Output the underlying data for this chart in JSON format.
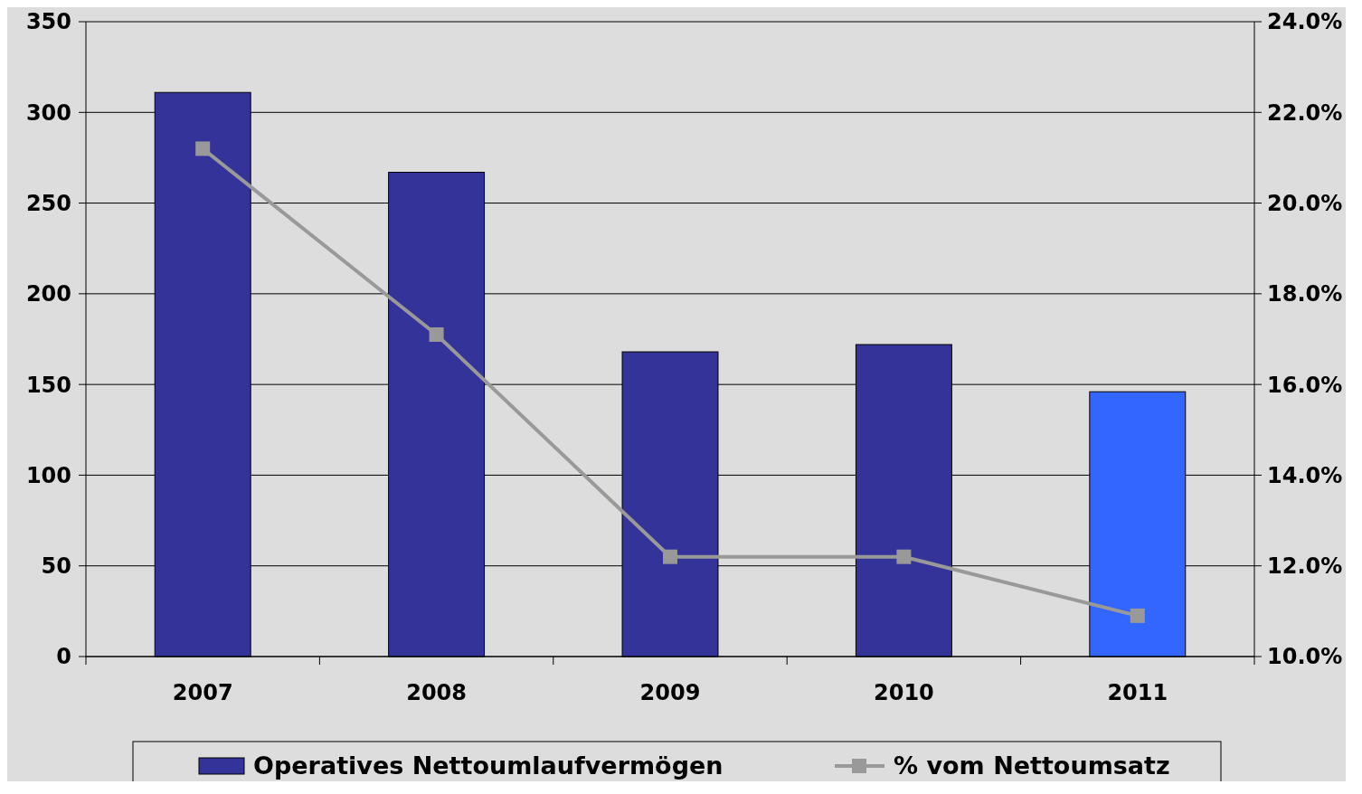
{
  "chart_data": {
    "type": "bar",
    "categories": [
      "2007",
      "2008",
      "2009",
      "2010",
      "2011"
    ],
    "series": [
      {
        "name": "Operatives Nettoumlaufvermögen",
        "color": "#333399",
        "colors": [
          "#333399",
          "#333399",
          "#333399",
          "#333399",
          "#3366ff"
        ],
        "values": [
          311,
          267,
          168,
          172,
          146
        ]
      },
      {
        "name": "% vom Nettoumsatz",
        "type": "line",
        "axis": "y2",
        "color": "#999999",
        "values": [
          21.2,
          17.1,
          12.2,
          12.2,
          10.9
        ]
      }
    ],
    "ylim": [
      0,
      350
    ],
    "yticks": [
      0,
      50,
      100,
      150,
      200,
      250,
      300,
      350
    ],
    "y2lim": [
      10,
      24
    ],
    "y2ticks": [
      {
        "value": 10,
        "label": "10.0%"
      },
      {
        "value": 12,
        "label": "12.0%"
      },
      {
        "value": 14,
        "label": "14.0%"
      },
      {
        "value": 16,
        "label": "16.0%"
      },
      {
        "value": 18,
        "label": "18.0%"
      },
      {
        "value": 20,
        "label": "20.0%"
      },
      {
        "value": 22,
        "label": "22.0%"
      },
      {
        "value": 24,
        "label": "24.0%"
      }
    ],
    "grid": "y",
    "legend": "bottom",
    "marker": "square",
    "line_style": "solid"
  }
}
